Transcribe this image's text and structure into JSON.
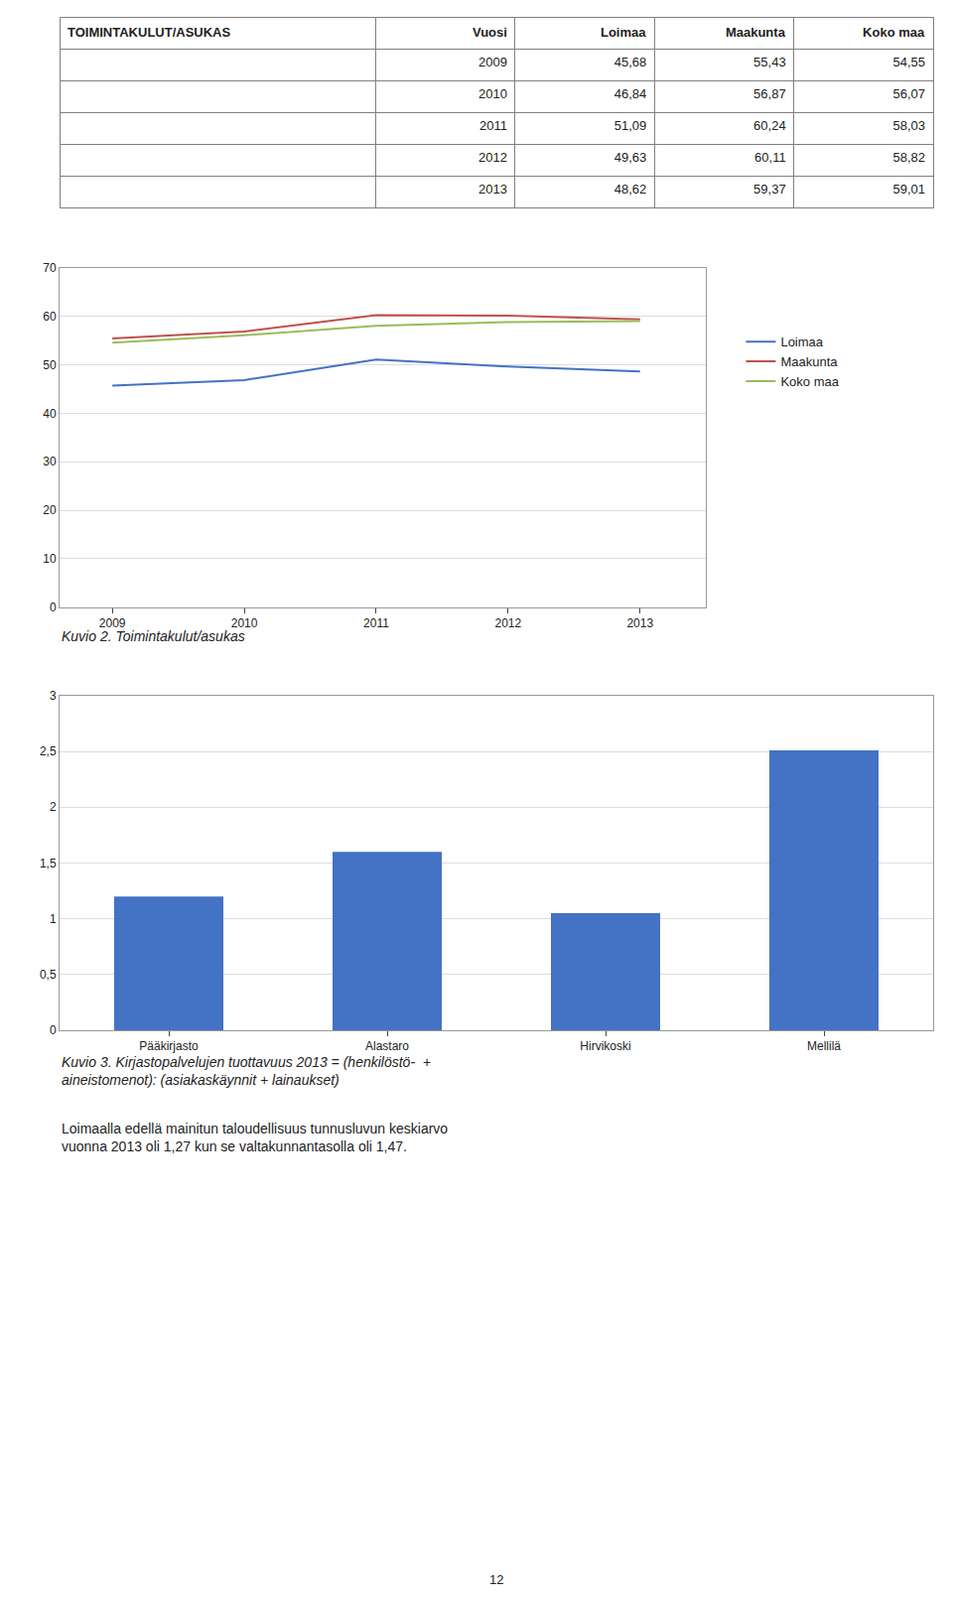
{
  "chart_data": [
    {
      "type": "table",
      "columns": [
        "TOIMINTAKULUT/ASUKAS",
        "Vuosi",
        "Loimaa",
        "Maakunta",
        "Koko maa"
      ],
      "rows": [
        [
          null,
          "2009",
          "45,68",
          "55,43",
          "54,55"
        ],
        [
          null,
          "2010",
          "46,84",
          "56,87",
          "56,07"
        ],
        [
          null,
          "2011",
          "51,09",
          "60,24",
          "58,03"
        ],
        [
          null,
          "2012",
          "49,63",
          "60,11",
          "58,82"
        ],
        [
          null,
          "2013",
          "48,62",
          "59,37",
          "59,01"
        ]
      ]
    },
    {
      "type": "line",
      "title": "Kuvio 2. Toimintakulut/asukas",
      "x": [
        2009,
        2010,
        2011,
        2012,
        2013
      ],
      "series": [
        {
          "name": "Loimaa",
          "color": "#4472C4",
          "values": [
            45.68,
            46.84,
            51.09,
            49.63,
            48.62
          ]
        },
        {
          "name": "Maakunta",
          "color": "#C0504D",
          "values": [
            55.43,
            56.87,
            60.24,
            60.11,
            59.37
          ]
        },
        {
          "name": "Koko maa",
          "color": "#9BBB59",
          "values": [
            54.55,
            56.07,
            58.03,
            58.82,
            59.01
          ]
        }
      ],
      "xlim": [
        2008.6,
        2013.5
      ],
      "xticks": [
        2009,
        2010,
        2011,
        2012,
        2013
      ],
      "ylim": [
        0,
        70
      ],
      "yticks": [
        0,
        10,
        20,
        30,
        40,
        50,
        60,
        70
      ],
      "grid": true,
      "legend": "right"
    },
    {
      "type": "bar",
      "title": "Kuvio 3. Kirjastopalvelujen tuottavuus 2013 = (henkilöstö-  +\naineistomenot): (asiakaskäynnit + lainaukset)",
      "categories": [
        "Pääkirjasto",
        "Alastaro",
        "Hirvikoski",
        "Mellilä"
      ],
      "values": [
        1.2,
        1.6,
        1.05,
        2.51
      ],
      "color": "#4472C4",
      "ylim": [
        0,
        3
      ],
      "yticks": [
        0,
        {
          "value": 0.5,
          "label": "0,5"
        },
        1,
        {
          "value": 1.5,
          "label": "1,5"
        },
        2,
        {
          "value": 2.5,
          "label": "2,5"
        },
        3
      ],
      "grid": true,
      "annotations": [
        "Loimaalla edellä mainitun taloudellisuus tunnusluvun keskiarvo\nvuonna 2013 oli 1,27 kun se valtakunnantasolla oli 1,47.",
        "12"
      ]
    }
  ]
}
